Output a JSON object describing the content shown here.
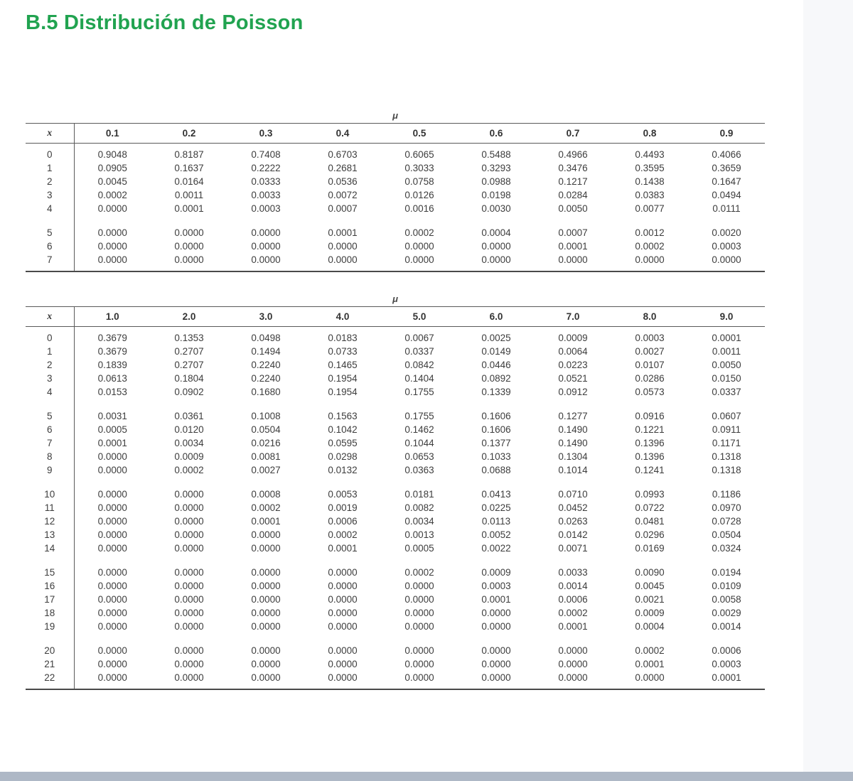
{
  "page": {
    "title": "B.5 Distribución de Poisson"
  },
  "colors": {
    "title_green": "#21a350",
    "bottom_strip": "#aeb8c6"
  },
  "tables": [
    {
      "mu_label": "μ",
      "x_header": "x",
      "columns": [
        "0.1",
        "0.2",
        "0.3",
        "0.4",
        "0.5",
        "0.6",
        "0.7",
        "0.8",
        "0.9"
      ],
      "groups": [
        {
          "rows": [
            {
              "x": "0",
              "values": [
                "0.9048",
                "0.8187",
                "0.7408",
                "0.6703",
                "0.6065",
                "0.5488",
                "0.4966",
                "0.4493",
                "0.4066"
              ]
            },
            {
              "x": "1",
              "values": [
                "0.0905",
                "0.1637",
                "0.2222",
                "0.2681",
                "0.3033",
                "0.3293",
                "0.3476",
                "0.3595",
                "0.3659"
              ]
            },
            {
              "x": "2",
              "values": [
                "0.0045",
                "0.0164",
                "0.0333",
                "0.0536",
                "0.0758",
                "0.0988",
                "0.1217",
                "0.1438",
                "0.1647"
              ]
            },
            {
              "x": "3",
              "values": [
                "0.0002",
                "0.0011",
                "0.0033",
                "0.0072",
                "0.0126",
                "0.0198",
                "0.0284",
                "0.0383",
                "0.0494"
              ]
            },
            {
              "x": "4",
              "values": [
                "0.0000",
                "0.0001",
                "0.0003",
                "0.0007",
                "0.0016",
                "0.0030",
                "0.0050",
                "0.0077",
                "0.0111"
              ]
            }
          ]
        },
        {
          "rows": [
            {
              "x": "5",
              "values": [
                "0.0000",
                "0.0000",
                "0.0000",
                "0.0001",
                "0.0002",
                "0.0004",
                "0.0007",
                "0.0012",
                "0.0020"
              ]
            },
            {
              "x": "6",
              "values": [
                "0.0000",
                "0.0000",
                "0.0000",
                "0.0000",
                "0.0000",
                "0.0000",
                "0.0001",
                "0.0002",
                "0.0003"
              ]
            },
            {
              "x": "7",
              "values": [
                "0.0000",
                "0.0000",
                "0.0000",
                "0.0000",
                "0.0000",
                "0.0000",
                "0.0000",
                "0.0000",
                "0.0000"
              ]
            }
          ]
        }
      ]
    },
    {
      "mu_label": "μ",
      "x_header": "x",
      "columns": [
        "1.0",
        "2.0",
        "3.0",
        "4.0",
        "5.0",
        "6.0",
        "7.0",
        "8.0",
        "9.0"
      ],
      "groups": [
        {
          "rows": [
            {
              "x": "0",
              "values": [
                "0.3679",
                "0.1353",
                "0.0498",
                "0.0183",
                "0.0067",
                "0.0025",
                "0.0009",
                "0.0003",
                "0.0001"
              ]
            },
            {
              "x": "1",
              "values": [
                "0.3679",
                "0.2707",
                "0.1494",
                "0.0733",
                "0.0337",
                "0.0149",
                "0.0064",
                "0.0027",
                "0.0011"
              ]
            },
            {
              "x": "2",
              "values": [
                "0.1839",
                "0.2707",
                "0.2240",
                "0.1465",
                "0.0842",
                "0.0446",
                "0.0223",
                "0.0107",
                "0.0050"
              ]
            },
            {
              "x": "3",
              "values": [
                "0.0613",
                "0.1804",
                "0.2240",
                "0.1954",
                "0.1404",
                "0.0892",
                "0.0521",
                "0.0286",
                "0.0150"
              ]
            },
            {
              "x": "4",
              "values": [
                "0.0153",
                "0.0902",
                "0.1680",
                "0.1954",
                "0.1755",
                "0.1339",
                "0.0912",
                "0.0573",
                "0.0337"
              ]
            }
          ]
        },
        {
          "rows": [
            {
              "x": "5",
              "values": [
                "0.0031",
                "0.0361",
                "0.1008",
                "0.1563",
                "0.1755",
                "0.1606",
                "0.1277",
                "0.0916",
                "0.0607"
              ]
            },
            {
              "x": "6",
              "values": [
                "0.0005",
                "0.0120",
                "0.0504",
                "0.1042",
                "0.1462",
                "0.1606",
                "0.1490",
                "0.1221",
                "0.0911"
              ]
            },
            {
              "x": "7",
              "values": [
                "0.0001",
                "0.0034",
                "0.0216",
                "0.0595",
                "0.1044",
                "0.1377",
                "0.1490",
                "0.1396",
                "0.1171"
              ]
            },
            {
              "x": "8",
              "values": [
                "0.0000",
                "0.0009",
                "0.0081",
                "0.0298",
                "0.0653",
                "0.1033",
                "0.1304",
                "0.1396",
                "0.1318"
              ]
            },
            {
              "x": "9",
              "values": [
                "0.0000",
                "0.0002",
                "0.0027",
                "0.0132",
                "0.0363",
                "0.0688",
                "0.1014",
                "0.1241",
                "0.1318"
              ]
            }
          ]
        },
        {
          "rows": [
            {
              "x": "10",
              "values": [
                "0.0000",
                "0.0000",
                "0.0008",
                "0.0053",
                "0.0181",
                "0.0413",
                "0.0710",
                "0.0993",
                "0.1186"
              ]
            },
            {
              "x": "11",
              "values": [
                "0.0000",
                "0.0000",
                "0.0002",
                "0.0019",
                "0.0082",
                "0.0225",
                "0.0452",
                "0.0722",
                "0.0970"
              ]
            },
            {
              "x": "12",
              "values": [
                "0.0000",
                "0.0000",
                "0.0001",
                "0.0006",
                "0.0034",
                "0.0113",
                "0.0263",
                "0.0481",
                "0.0728"
              ]
            },
            {
              "x": "13",
              "values": [
                "0.0000",
                "0.0000",
                "0.0000",
                "0.0002",
                "0.0013",
                "0.0052",
                "0.0142",
                "0.0296",
                "0.0504"
              ]
            },
            {
              "x": "14",
              "values": [
                "0.0000",
                "0.0000",
                "0.0000",
                "0.0001",
                "0.0005",
                "0.0022",
                "0.0071",
                "0.0169",
                "0.0324"
              ]
            }
          ]
        },
        {
          "rows": [
            {
              "x": "15",
              "values": [
                "0.0000",
                "0.0000",
                "0.0000",
                "0.0000",
                "0.0002",
                "0.0009",
                "0.0033",
                "0.0090",
                "0.0194"
              ]
            },
            {
              "x": "16",
              "values": [
                "0.0000",
                "0.0000",
                "0.0000",
                "0.0000",
                "0.0000",
                "0.0003",
                "0.0014",
                "0.0045",
                "0.0109"
              ]
            },
            {
              "x": "17",
              "values": [
                "0.0000",
                "0.0000",
                "0.0000",
                "0.0000",
                "0.0000",
                "0.0001",
                "0.0006",
                "0.0021",
                "0.0058"
              ]
            },
            {
              "x": "18",
              "values": [
                "0.0000",
                "0.0000",
                "0.0000",
                "0.0000",
                "0.0000",
                "0.0000",
                "0.0002",
                "0.0009",
                "0.0029"
              ]
            },
            {
              "x": "19",
              "values": [
                "0.0000",
                "0.0000",
                "0.0000",
                "0.0000",
                "0.0000",
                "0.0000",
                "0.0001",
                "0.0004",
                "0.0014"
              ]
            }
          ]
        },
        {
          "rows": [
            {
              "x": "20",
              "values": [
                "0.0000",
                "0.0000",
                "0.0000",
                "0.0000",
                "0.0000",
                "0.0000",
                "0.0000",
                "0.0002",
                "0.0006"
              ]
            },
            {
              "x": "21",
              "values": [
                "0.0000",
                "0.0000",
                "0.0000",
                "0.0000",
                "0.0000",
                "0.0000",
                "0.0000",
                "0.0001",
                "0.0003"
              ]
            },
            {
              "x": "22",
              "values": [
                "0.0000",
                "0.0000",
                "0.0000",
                "0.0000",
                "0.0000",
                "0.0000",
                "0.0000",
                "0.0000",
                "0.0001"
              ]
            }
          ]
        }
      ]
    }
  ]
}
